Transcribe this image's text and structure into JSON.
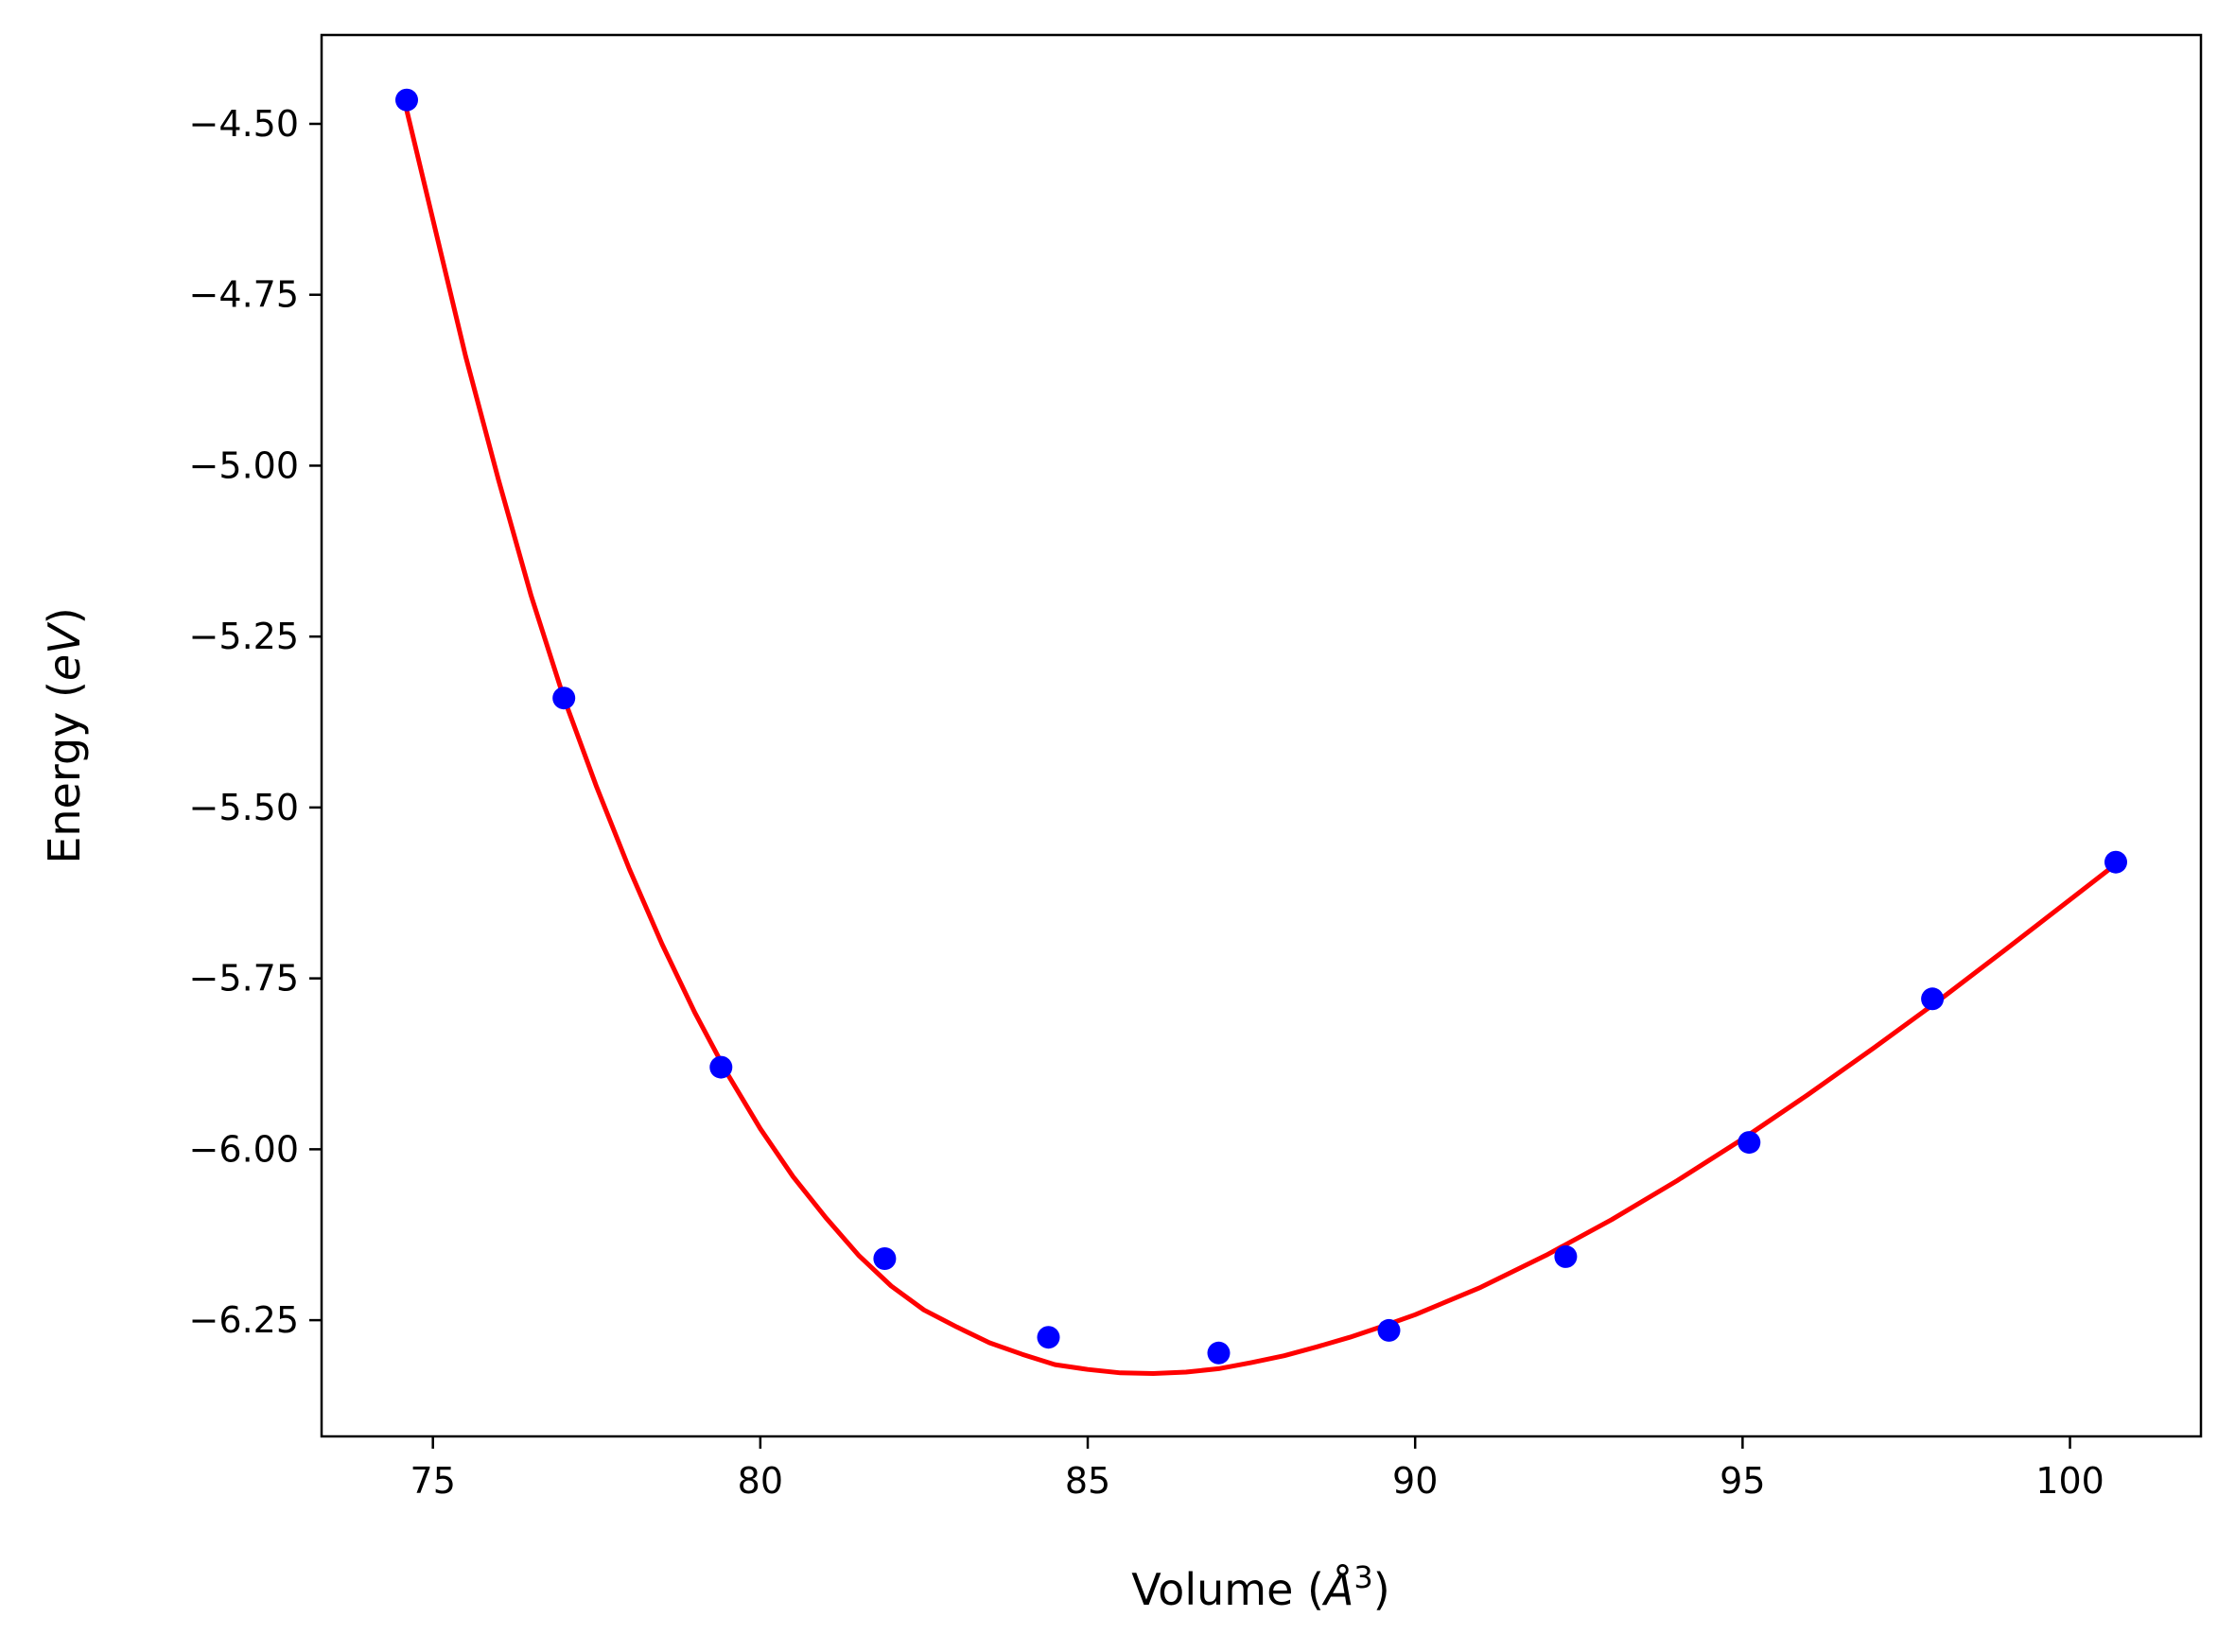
{
  "chart_data": {
    "type": "scatter",
    "title": "",
    "xlabel_main": "Volume (",
    "xlabel_symbol": "Å",
    "xlabel_sup": "3",
    "xlabel_close": ")",
    "ylabel_main": "Energy (",
    "ylabel_unit": "eV",
    "ylabel_close": ")",
    "xlim": [
      73.3,
      102.0
    ],
    "ylim": [
      -6.42,
      -4.37
    ],
    "xticks": [
      75,
      80,
      85,
      90,
      95,
      100
    ],
    "xtick_labels": [
      "75",
      "80",
      "85",
      "90",
      "95",
      "100"
    ],
    "yticks": [
      -4.5,
      -4.75,
      -5.0,
      -5.25,
      -5.5,
      -5.75,
      -6.0,
      -6.25
    ],
    "ytick_labels": [
      "−4.50",
      "−4.75",
      "−5.00",
      "−5.25",
      "−5.50",
      "−5.75",
      "−6.00",
      "−6.25"
    ],
    "grid": false,
    "series": [
      {
        "kind": "points",
        "color": "#0000ff",
        "x": [
          74.6,
          77.0,
          79.4,
          81.9,
          84.4,
          87.0,
          89.6,
          92.3,
          95.1,
          97.9,
          100.7
        ],
        "y": [
          -4.465,
          -5.34,
          -5.88,
          -6.16,
          -6.275,
          -6.298,
          -6.265,
          -6.157,
          -5.99,
          -5.78,
          -5.58
        ]
      },
      {
        "kind": "fit",
        "color": "#ff0000",
        "x": [
          74.6,
          75.0,
          75.5,
          76.0,
          76.5,
          77.0,
          77.5,
          78.0,
          78.5,
          79.0,
          79.5,
          80.0,
          80.5,
          81.0,
          81.5,
          82.0,
          82.5,
          83.0,
          83.5,
          84.0,
          84.5,
          85.0,
          85.5,
          86.0,
          86.5,
          87.0,
          87.5,
          88.0,
          88.5,
          89.0,
          89.5,
          90.0,
          91.0,
          92.0,
          93.0,
          94.0,
          95.0,
          96.0,
          97.0,
          98.0,
          99.0,
          100.0,
          100.7
        ],
        "y": [
          -4.48,
          -4.64,
          -4.84,
          -5.02,
          -5.19,
          -5.34,
          -5.47,
          -5.59,
          -5.7,
          -5.8,
          -5.89,
          -5.97,
          -6.04,
          -6.1,
          -6.155,
          -6.2,
          -6.235,
          -6.26,
          -6.283,
          -6.3,
          -6.315,
          -6.322,
          -6.327,
          -6.328,
          -6.326,
          -6.321,
          -6.312,
          -6.302,
          -6.289,
          -6.275,
          -6.259,
          -6.242,
          -6.202,
          -6.155,
          -6.103,
          -6.046,
          -5.985,
          -5.92,
          -5.852,
          -5.782,
          -5.709,
          -5.635,
          -5.583
        ]
      }
    ]
  }
}
